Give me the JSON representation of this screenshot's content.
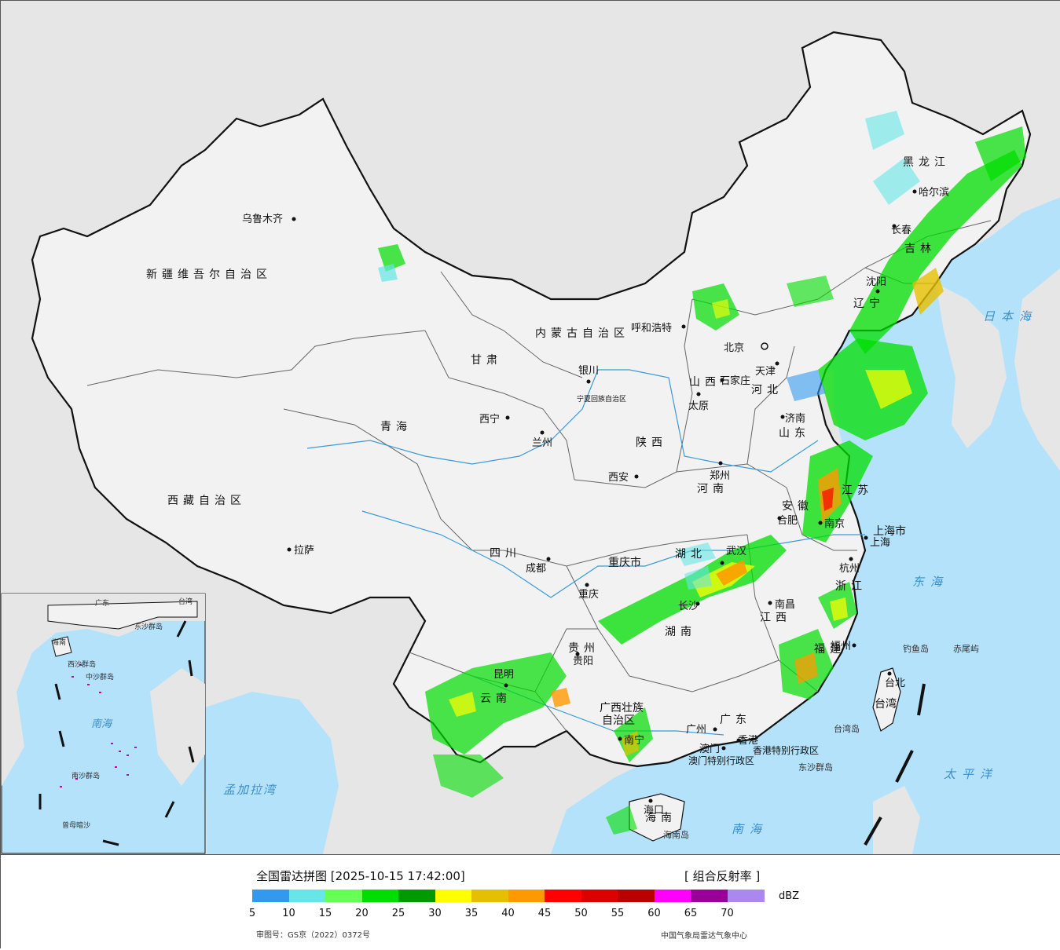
{
  "title": "全国雷达拼图 [2025-10-15 17:42:00]",
  "product": "[ 组合反射率 ]",
  "unit": "dBZ",
  "approval_number": "审图号：GS京（2022）0372号",
  "credit": "中国气象局雷达气象中心",
  "colors": {
    "sea": "#b4e2fb",
    "foreign_land": "#e6e6e6",
    "china_land": "#f2f2f2",
    "border": "#111111",
    "province_border": "#666666",
    "river": "#3a9bd6"
  },
  "legend": {
    "scale": [
      {
        "color": "#3399ee"
      },
      {
        "color": "#66e6e6"
      },
      {
        "color": "#66ff55"
      },
      {
        "color": "#00dd00"
      },
      {
        "color": "#009900"
      },
      {
        "color": "#ffff00"
      },
      {
        "color": "#e6c000"
      },
      {
        "color": "#ff9900"
      },
      {
        "color": "#ff0000"
      },
      {
        "color": "#dd0000"
      },
      {
        "color": "#bb0000"
      },
      {
        "color": "#ff00ff"
      },
      {
        "color": "#990099"
      },
      {
        "color": "#aa88ee"
      }
    ],
    "ticks": [
      "5",
      "10",
      "15",
      "20",
      "25",
      "30",
      "35",
      "40",
      "45",
      "50",
      "55",
      "60",
      "65",
      "70"
    ]
  },
  "province_labels": [
    "新疆维吾尔自治区",
    "西藏自治区",
    "青海",
    "甘肃",
    "四川",
    "云南",
    "贵州",
    "广西壮族",
    "自治区",
    "广东",
    "湖南",
    "湖北",
    "江西",
    "福建",
    "浙江",
    "安徽",
    "江苏",
    "山东",
    "河南",
    "陕西",
    "山西",
    "河北",
    "内蒙古自治区",
    "辽宁",
    "吉林",
    "黑龙江",
    "宁夏回族自治区",
    "重庆市",
    "上海市",
    "海南",
    "台湾"
  ],
  "cities": [
    {
      "name": "乌鲁木齐"
    },
    {
      "name": "拉萨"
    },
    {
      "name": "西宁"
    },
    {
      "name": "兰州"
    },
    {
      "name": "银川"
    },
    {
      "name": "呼和浩特"
    },
    {
      "name": "北京"
    },
    {
      "name": "天津"
    },
    {
      "name": "石家庄"
    },
    {
      "name": "太原"
    },
    {
      "name": "济南"
    },
    {
      "name": "郑州"
    },
    {
      "name": "西安"
    },
    {
      "name": "成都"
    },
    {
      "name": "重庆"
    },
    {
      "name": "武汉"
    },
    {
      "name": "合肥"
    },
    {
      "name": "南京"
    },
    {
      "name": "上海"
    },
    {
      "name": "杭州"
    },
    {
      "name": "南昌"
    },
    {
      "name": "长沙"
    },
    {
      "name": "贵阳"
    },
    {
      "name": "昆明"
    },
    {
      "name": "南宁"
    },
    {
      "name": "广州"
    },
    {
      "name": "福州"
    },
    {
      "name": "台北"
    },
    {
      "name": "海口"
    },
    {
      "name": "沈阳"
    },
    {
      "name": "长春"
    },
    {
      "name": "哈尔滨"
    },
    {
      "name": "香港"
    },
    {
      "name": "澳门"
    }
  ],
  "sea_labels": [
    "日本海",
    "东海",
    "太平洋",
    "南海",
    "孟加拉湾"
  ],
  "islands": [
    "钓鱼岛",
    "赤尾屿",
    "台湾岛",
    "海南岛",
    "东沙群岛",
    "香港特别行政区",
    "澳门特别行政区"
  ],
  "inset_labels": [
    "南海",
    "广东",
    "台湾",
    "海南",
    "东沙群岛",
    "西沙群岛",
    "中沙群岛",
    "南沙群岛",
    "曾母暗沙"
  ]
}
